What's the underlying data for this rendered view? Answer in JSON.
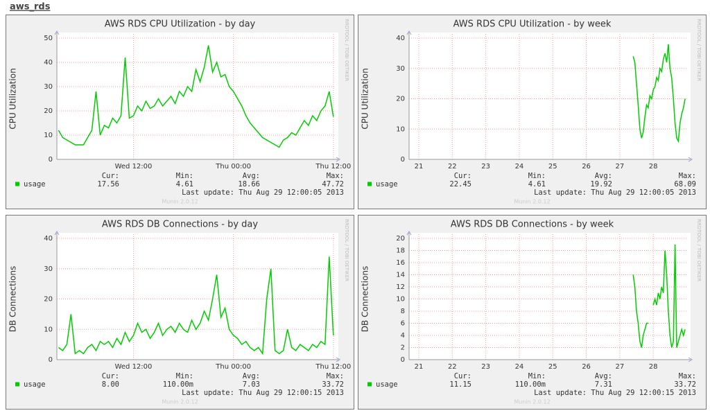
{
  "page_title": "aws_rds",
  "chart_data": [
    {
      "type": "line",
      "title": "AWS RDS CPU Utilization - by day",
      "y_label": "CPU Utilization",
      "x": [
        -9,
        -8.5,
        -8,
        -7.5,
        -7,
        -6.5,
        -6,
        -5.5,
        -5,
        -4.5,
        -4,
        -3.5,
        -3,
        -2.5,
        -2,
        -1.5,
        -1,
        -0.5,
        0,
        0.5,
        1,
        1.5,
        2,
        2.5,
        3,
        3.5,
        4,
        4.5,
        5,
        5.5,
        6,
        6.5,
        7,
        7.5,
        8,
        8.5,
        9,
        9.5,
        10,
        10.5,
        11,
        11.5,
        12,
        12.5,
        13,
        13.5,
        14,
        14.5,
        15,
        15.5,
        16,
        16.5,
        17,
        17.5,
        18,
        18.5,
        19,
        19.5,
        20,
        20.5,
        21,
        21.5,
        22,
        22.5,
        23,
        23.5,
        24
      ],
      "xlim": [
        -9.2,
        24.1
      ],
      "xticks": [
        {
          "value": 0,
          "label": "Wed 12:00"
        },
        {
          "value": 12,
          "label": "Thu 00:00"
        },
        {
          "value": 24,
          "label": "Thu 12:00"
        }
      ],
      "ylim": [
        0,
        50
      ],
      "yticks": [
        0,
        10,
        20,
        30,
        40,
        50
      ],
      "grid": true,
      "series": [
        {
          "name": "usage",
          "color": "#00cc00",
          "values": [
            12,
            9,
            8,
            7,
            6,
            6,
            6,
            9,
            12,
            28,
            10,
            14,
            13,
            17,
            15,
            18,
            42,
            17,
            18,
            22,
            20,
            24,
            21,
            22,
            25,
            22,
            24,
            26,
            23,
            28,
            26,
            30,
            28,
            37,
            32,
            38,
            47,
            36,
            40,
            34,
            35,
            30,
            28,
            25,
            22,
            18,
            15,
            13,
            11,
            9,
            8,
            7,
            6,
            5,
            8,
            9,
            11,
            10,
            13,
            16,
            14,
            18,
            16,
            20,
            22,
            28,
            17.56
          ],
          "stats": [
            {
              "label": "Cur:",
              "value": "17.56"
            },
            {
              "label": "Min:",
              "value": "4.61"
            },
            {
              "label": "Avg:",
              "value": "18.66"
            },
            {
              "label": "Max:",
              "value": "47.72"
            }
          ]
        }
      ],
      "last_update": "Last update: Thu Aug 29 12:00:05 2013",
      "footer": "Munin 2.0.12",
      "watermark": "RRDTOOL / TOBI OETIKER"
    },
    {
      "type": "line",
      "title": "AWS RDS CPU Utilization - by week",
      "y_label": "CPU Utilization",
      "x": [
        27.4,
        27.45,
        27.5,
        27.55,
        27.6,
        27.65,
        27.7,
        27.75,
        27.8,
        27.85,
        27.9,
        27.95,
        28,
        28.05,
        28.1,
        28.15,
        28.2,
        28.25,
        28.3,
        28.35,
        28.4,
        28.45,
        28.5,
        28.55,
        28.6,
        28.65,
        28.7,
        28.75,
        28.8,
        28.85,
        28.9,
        28.95
      ],
      "xlim": [
        20.71,
        28.99
      ],
      "xticks": [
        21,
        22,
        23,
        24,
        25,
        26,
        27,
        28
      ],
      "ylim": [
        0,
        40
      ],
      "yticks": [
        0,
        10,
        20,
        30,
        40
      ],
      "grid": true,
      "series": [
        {
          "name": "usage",
          "color": "#00cc00",
          "values": [
            34,
            32,
            25,
            18,
            10,
            7,
            9,
            14,
            18,
            17,
            21,
            20,
            23,
            24,
            27,
            26,
            30,
            29,
            33,
            35,
            32,
            38,
            30,
            27,
            20,
            12,
            7,
            6,
            12,
            15,
            17,
            20
          ],
          "stats": [
            {
              "label": "Cur:",
              "value": "22.45"
            },
            {
              "label": "Min:",
              "value": "4.61"
            },
            {
              "label": "Avg:",
              "value": "19.92"
            },
            {
              "label": "Max:",
              "value": "68.09"
            }
          ]
        }
      ],
      "last_update": "Last update: Thu Aug 29 12:00:05 2013",
      "footer": "Munin 2.0.12",
      "watermark": "RRDTOOL / TOBI OETIKER"
    },
    {
      "type": "line",
      "title": "AWS RDS DB Connections - by day",
      "y_label": "DB Connections",
      "x": [
        -9,
        -8.5,
        -8,
        -7.5,
        -7,
        -6.5,
        -6,
        -5.5,
        -5,
        -4.5,
        -4,
        -3.5,
        -3,
        -2.5,
        -2,
        -1.5,
        -1,
        -0.5,
        0,
        0.5,
        1,
        1.5,
        2,
        2.5,
        3,
        3.5,
        4,
        4.5,
        5,
        5.5,
        6,
        6.5,
        7,
        7.5,
        8,
        8.5,
        9,
        9.5,
        10,
        10.5,
        11,
        11.5,
        12,
        12.5,
        13,
        13.5,
        14,
        14.5,
        15,
        15.5,
        16,
        16.5,
        17,
        17.5,
        18,
        18.5,
        19,
        19.5,
        20,
        20.5,
        21,
        21.5,
        22,
        22.5,
        23,
        23.5,
        24
      ],
      "xlim": [
        -9.2,
        24.1
      ],
      "xticks": [
        {
          "value": 0,
          "label": "Wed 12:00"
        },
        {
          "value": 12,
          "label": "Thu 00:00"
        },
        {
          "value": 24,
          "label": "Thu 12:00"
        }
      ],
      "ylim": [
        0,
        40
      ],
      "yticks": [
        0,
        10,
        20,
        30,
        40
      ],
      "grid": true,
      "series": [
        {
          "name": "usage",
          "color": "#00cc00",
          "values": [
            4,
            3,
            5,
            15,
            2,
            3,
            2,
            4,
            5,
            3,
            6,
            5,
            6,
            4,
            7,
            5,
            9,
            6,
            8,
            12,
            9,
            10,
            7,
            9,
            12,
            8,
            10,
            11,
            9,
            12,
            10,
            9,
            13,
            10,
            12,
            16,
            13,
            20,
            28,
            14,
            17,
            10,
            8,
            7,
            5,
            6,
            4,
            3,
            4,
            2,
            20,
            30,
            3,
            2,
            3,
            10,
            4,
            3,
            5,
            4,
            3,
            5,
            4,
            6,
            5,
            34,
            8
          ],
          "stats": [
            {
              "label": "Cur:",
              "value": "8.00"
            },
            {
              "label": "Min:",
              "value": "110.00m"
            },
            {
              "label": "Avg:",
              "value": "7.03"
            },
            {
              "label": "Max:",
              "value": "33.72"
            }
          ]
        }
      ],
      "last_update": "Last update: Thu Aug 29 12:00:15 2013",
      "footer": "Munin 2.0.12",
      "watermark": "RRDTOOL / TOBI OETIKER"
    },
    {
      "type": "line",
      "title": "AWS RDS DB Connections - by week",
      "y_label": "DB Connections",
      "x": [
        27.4,
        27.45,
        27.5,
        27.55,
        27.6,
        27.65,
        27.7,
        27.75,
        27.8,
        27.85,
        27.9,
        27.95,
        28,
        28.05,
        28.1,
        28.15,
        28.2,
        28.25,
        28.3,
        28.35,
        28.4,
        28.45,
        28.5,
        28.55,
        28.6,
        28.65,
        28.7,
        28.75,
        28.8,
        28.85,
        28.9,
        28.95
      ],
      "xlim": [
        20.71,
        28.99
      ],
      "xticks": [
        21,
        22,
        23,
        24,
        25,
        26,
        27,
        28
      ],
      "ylim": [
        0,
        20
      ],
      "yticks": [
        0,
        2,
        4,
        6,
        8,
        10,
        12,
        14,
        16,
        18,
        20
      ],
      "grid": true,
      "series": [
        {
          "name": "usage",
          "color": "#00cc00",
          "values": [
            14,
            12,
            8,
            6,
            3,
            2,
            4,
            5,
            6,
            6,
            null,
            null,
            9,
            10,
            9,
            11,
            10,
            12,
            11,
            18,
            14,
            8,
            4,
            2,
            3,
            19,
            2,
            3,
            4,
            5,
            4,
            5
          ],
          "stats": [
            {
              "label": "Cur:",
              "value": "11.15"
            },
            {
              "label": "Min:",
              "value": "110.00m"
            },
            {
              "label": "Avg:",
              "value": "7.31"
            },
            {
              "label": "Max:",
              "value": "33.72"
            }
          ]
        }
      ],
      "last_update": "Last update: Thu Aug 29 12:00:15 2013",
      "footer": "Munin 2.0.12",
      "watermark": "RRDTOOL / TOBI OETIKER"
    }
  ]
}
